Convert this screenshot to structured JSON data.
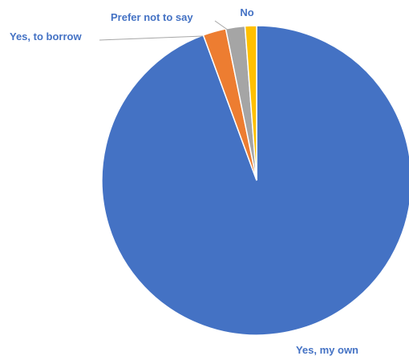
{
  "chart_data": {
    "type": "pie",
    "title": "",
    "start_angle_deg": 0,
    "direction": "clockwise",
    "slices": [
      {
        "label": "Yes, my own",
        "value": 94.4,
        "color": "#4472C4"
      },
      {
        "label": "Yes, to borrow",
        "value": 2.4,
        "color": "#ED7D31"
      },
      {
        "label": "Prefer not to say",
        "value": 2.0,
        "color": "#A5A5A5"
      },
      {
        "label": "No",
        "value": 1.2,
        "color": "#FFC000"
      }
    ],
    "label_color": "#4472C4",
    "leader_line_color": "#A6A6A6",
    "legend": "none",
    "data_labels": "category-name"
  }
}
